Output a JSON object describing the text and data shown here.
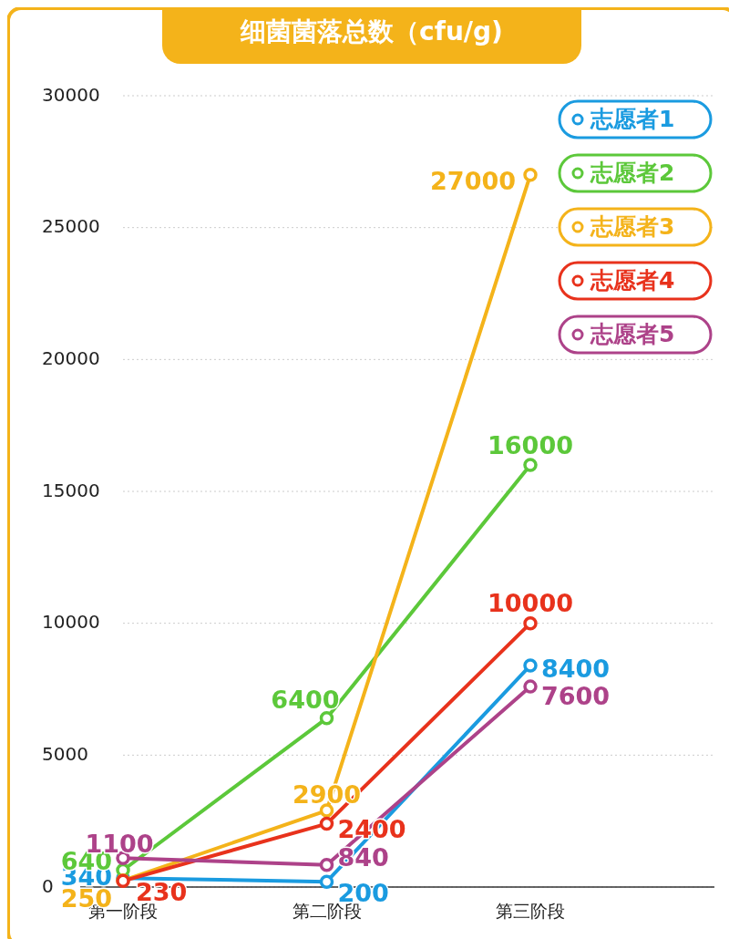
{
  "chart_data": {
    "type": "line",
    "title": "细菌菌落总数（cfu/g)",
    "categories": [
      "第一阶段",
      "第二阶段",
      "第三阶段"
    ],
    "series": [
      {
        "name": "志愿者1",
        "color": "#1a9be0",
        "values": [
          340,
          200,
          8400
        ]
      },
      {
        "name": "志愿者2",
        "color": "#5cc83a",
        "values": [
          640,
          6400,
          16000
        ]
      },
      {
        "name": "志愿者3",
        "color": "#f4b31a",
        "values": [
          250,
          2900,
          27000
        ]
      },
      {
        "name": "志愿者4",
        "color": "#e8321c",
        "values": [
          230,
          2400,
          10000
        ]
      },
      {
        "name": "志愿者5",
        "color": "#ad4289",
        "values": [
          1100,
          840,
          7600
        ]
      }
    ],
    "ylim": [
      0,
      30000
    ],
    "yticks": [
      0,
      5000,
      10000,
      15000,
      20000,
      25000,
      30000
    ],
    "grid": "y",
    "legend": "top right",
    "marker": "circle",
    "data_labels": true
  }
}
